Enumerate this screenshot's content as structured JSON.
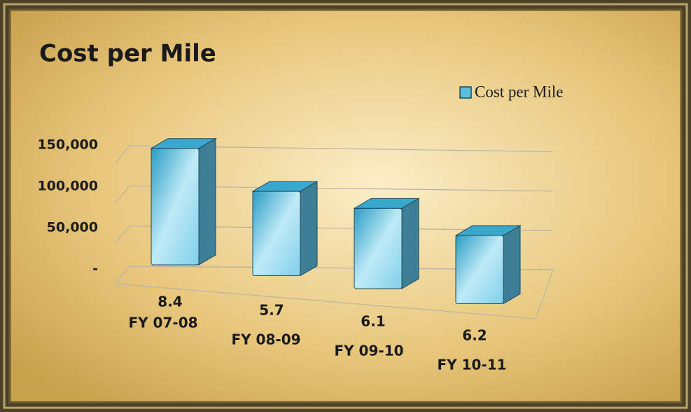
{
  "chart_data": {
    "type": "bar3d",
    "title": "Cost per Mile",
    "categories": [
      [
        "8.4",
        "FY 07-08"
      ],
      [
        "5.7",
        "FY 08-09"
      ],
      [
        "6.1",
        "FY 09-10"
      ],
      [
        "6.2",
        "FY 10-11"
      ]
    ],
    "series": [
      {
        "name": "Cost per Mile",
        "color": "#5bc0de",
        "values": [
          145000,
          105000,
          100000,
          85000
        ]
      }
    ],
    "ylim": [
      0,
      150000
    ],
    "yticks": [
      {
        "value": 0,
        "label": "-"
      },
      {
        "value": 50000,
        "label": "50,000"
      },
      {
        "value": 100000,
        "label": "100,000"
      },
      {
        "value": 150000,
        "label": "150,000"
      }
    ],
    "grid": true,
    "legend": "top-right"
  }
}
